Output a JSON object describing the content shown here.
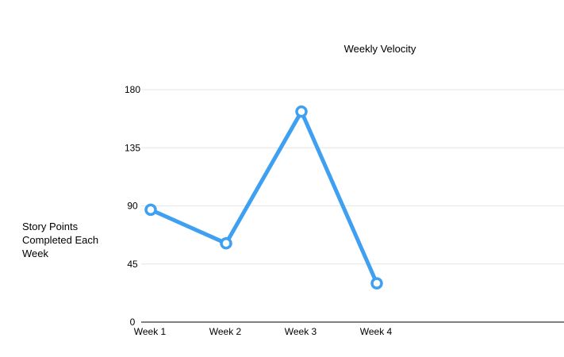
{
  "chart_data": {
    "type": "line",
    "title": "Weekly Velocity",
    "xlabel": "",
    "ylabel": "Story Points Completed Each Week",
    "categories": [
      "Week 1",
      "Week 2",
      "Week 3",
      "Week 4"
    ],
    "yticks": [
      "0",
      "45",
      "90",
      "135",
      "180"
    ],
    "ylim": [
      0,
      180
    ],
    "grid": true,
    "legend": "none",
    "series": [
      {
        "values": [
          87,
          61,
          163,
          30
        ],
        "color": "#3fa0f2"
      }
    ]
  }
}
